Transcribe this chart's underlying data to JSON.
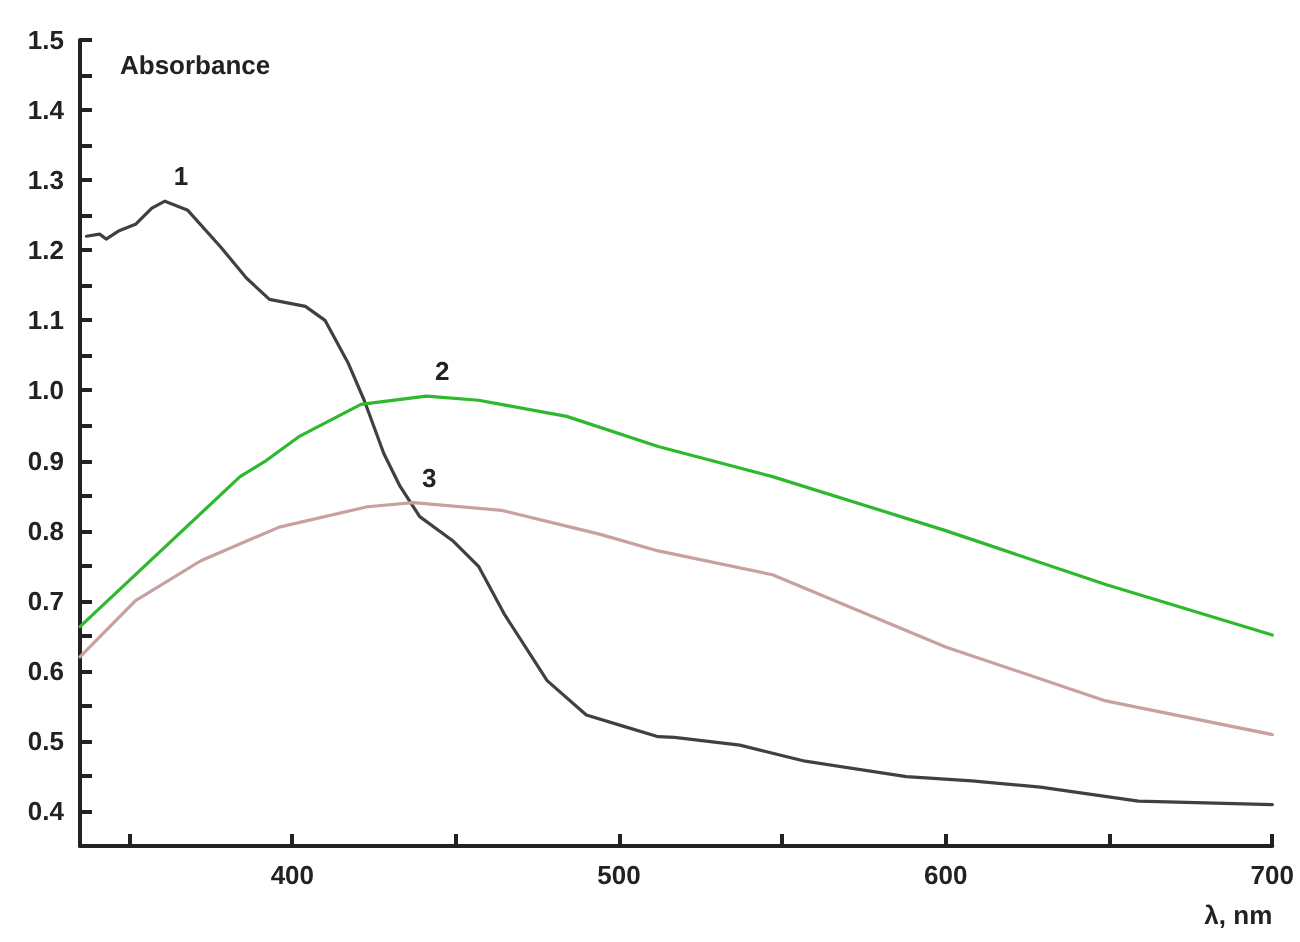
{
  "chart_data": {
    "type": "line",
    "xlabel": "λ, nm",
    "ylabel": "Absorbance",
    "xlim": [
      335,
      700
    ],
    "xticks": [
      {
        "value": 350,
        "label": null
      },
      400,
      {
        "value": 450,
        "label": null
      },
      500,
      {
        "value": 550,
        "label": null
      },
      600,
      {
        "value": 650,
        "label": null
      },
      700
    ],
    "ylim": [
      0.35,
      1.5
    ],
    "yticks": [
      0.4,
      {
        "value": 0.45,
        "label": null
      },
      0.5,
      {
        "value": 0.55,
        "label": null
      },
      0.6,
      {
        "value": 0.65,
        "label": null
      },
      0.7,
      {
        "value": 0.75,
        "label": null
      },
      0.8,
      {
        "value": 0.85,
        "label": null
      },
      0.9,
      {
        "value": 0.95,
        "label": null
      },
      {
        "value": 1.0,
        "label": "1.0"
      },
      {
        "value": 1.05,
        "label": null
      },
      1.1,
      {
        "value": 1.15,
        "label": null
      },
      1.2,
      {
        "value": 1.25,
        "label": null
      },
      1.3,
      {
        "value": 1.35,
        "label": null
      },
      1.4,
      {
        "value": 1.45,
        "label": null
      },
      1.5
    ],
    "grid": false,
    "legend": false,
    "marker": "none",
    "line_style": "solid",
    "series": [
      {
        "name": "1",
        "color": "#404040",
        "x": [
          337,
          341,
          343,
          347,
          352,
          357,
          361,
          368,
          378,
          386,
          393,
          404,
          410,
          417,
          422,
          428,
          433,
          439,
          449,
          457,
          465,
          478,
          490,
          502,
          512,
          517,
          537,
          557,
          588,
          608,
          629,
          659,
          700
        ],
        "values": [
          1.22,
          1.223,
          1.216,
          1.228,
          1.237,
          1.26,
          1.27,
          1.257,
          1.205,
          1.16,
          1.13,
          1.12,
          1.1,
          1.04,
          0.986,
          0.91,
          0.863,
          0.82,
          0.786,
          0.749,
          0.68,
          0.586,
          0.537,
          0.52,
          0.506,
          0.505,
          0.494,
          0.471,
          0.449,
          0.443,
          0.434,
          0.414,
          0.409
        ]
      },
      {
        "name": "2",
        "color": "#2db82d",
        "x": [
          335,
          384,
          392,
          402,
          421,
          441,
          457,
          484,
          512,
          547,
          600,
          649,
          700
        ],
        "values": [
          0.663,
          0.877,
          0.9,
          0.934,
          0.98,
          0.992,
          0.986,
          0.963,
          0.92,
          0.877,
          0.8,
          0.723,
          0.651
        ]
      },
      {
        "name": "3",
        "color": "#c8a0a0",
        "x": [
          335,
          352,
          372,
          396,
          423,
          437,
          464,
          494,
          512,
          547,
          600,
          649,
          700
        ],
        "values": [
          0.62,
          0.7,
          0.757,
          0.805,
          0.834,
          0.84,
          0.829,
          0.795,
          0.771,
          0.737,
          0.634,
          0.557,
          0.509
        ]
      }
    ]
  }
}
